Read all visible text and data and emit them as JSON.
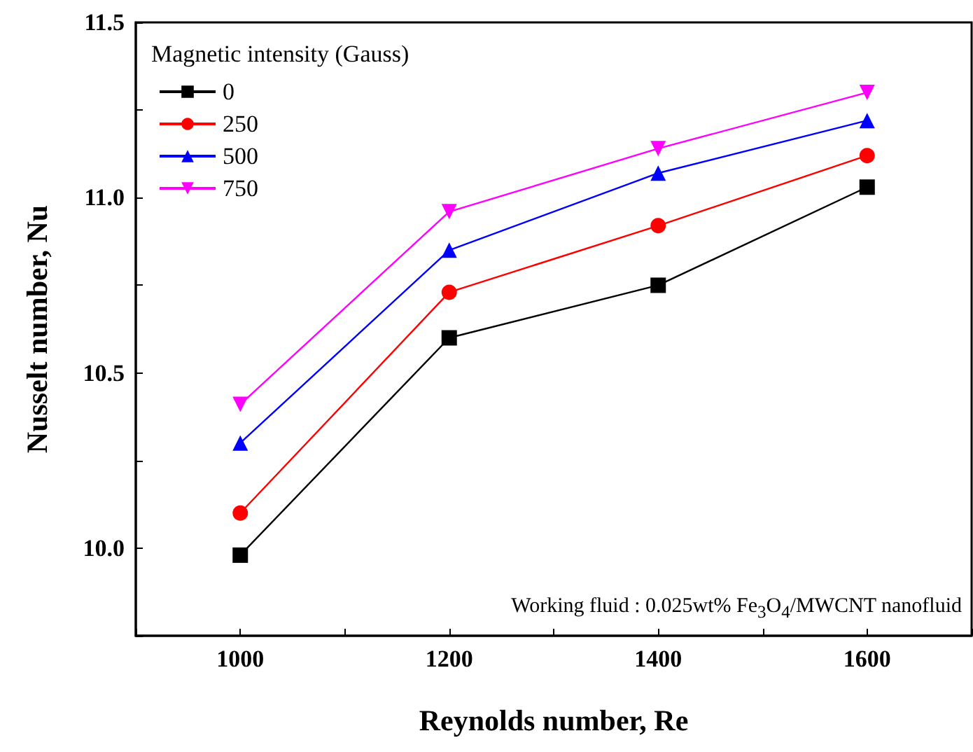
{
  "chart_data": {
    "type": "line",
    "xlabel": "Reynolds number, Re",
    "ylabel": "Nusselt number, Nu",
    "legend_title": "Magnetic intensity (Gauss)",
    "legend": "top left",
    "line_style": "solid",
    "grid": false,
    "x": [
      1000,
      1200,
      1400,
      1600
    ],
    "xlim": [
      900,
      1700
    ],
    "xticks": [
      {
        "value": 900,
        "label": null
      },
      1000,
      {
        "value": 1100,
        "label": null
      },
      1200,
      {
        "value": 1300,
        "label": null
      },
      1400,
      {
        "value": 1500,
        "label": null
      },
      1600,
      {
        "value": 1700,
        "label": null
      }
    ],
    "ylim": [
      9.75,
      11.5
    ],
    "yticks": [
      {
        "value": 9.75,
        "label": null
      },
      {
        "value": 10,
        "label": "10.0"
      },
      {
        "value": 10.25,
        "label": null
      },
      {
        "value": 10.5,
        "label": "10.5"
      },
      {
        "value": 10.75,
        "label": null
      },
      {
        "value": 11,
        "label": "11.0"
      },
      {
        "value": 11.25,
        "label": null
      },
      {
        "value": 11.5,
        "label": "11.5"
      }
    ],
    "series": [
      {
        "name": "0",
        "color": "#000000",
        "marker": "square",
        "values": [
          9.98,
          10.6,
          10.75,
          11.03
        ]
      },
      {
        "name": "250",
        "color": "#ff0000",
        "marker": "circle",
        "values": [
          10.1,
          10.73,
          10.92,
          11.12
        ]
      },
      {
        "name": "500",
        "color": "#0000ff",
        "marker": "triangle",
        "values": [
          10.3,
          10.85,
          11.07,
          11.22
        ]
      },
      {
        "name": "750",
        "color": "#ff00ff",
        "marker": "triangle-down",
        "values": [
          10.41,
          10.96,
          11.14,
          11.3
        ]
      }
    ],
    "annotations": [
      "Working fluid : 0.025wt% Fe$_{3}$O$_{4}$/MWCNT nanofluid"
    ]
  }
}
